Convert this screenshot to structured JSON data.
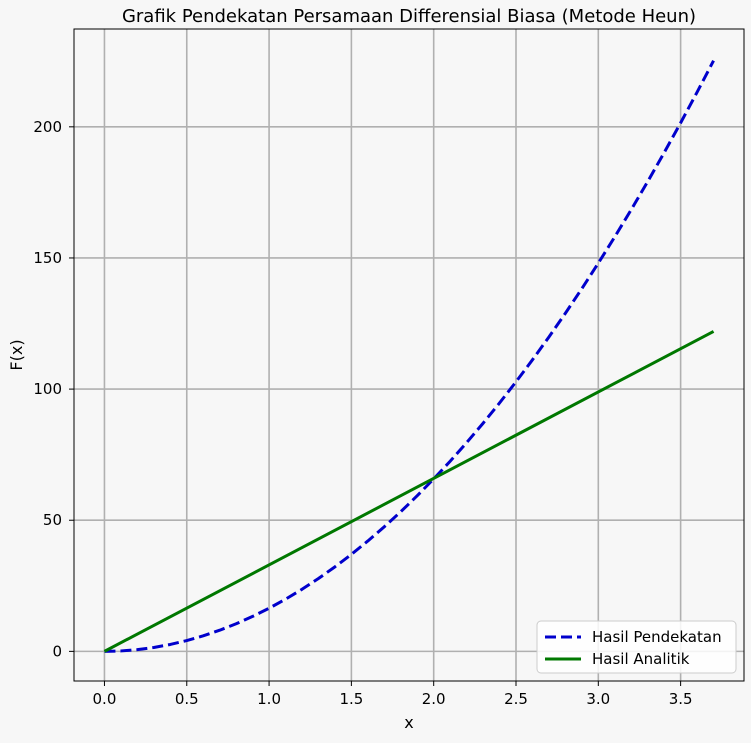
{
  "chart_data": {
    "type": "line",
    "title": "Grafik Pendekatan Persamaan Differensial Biasa (Metode Heun)",
    "xlabel": "x",
    "ylabel": "F(x)",
    "xlim": [
      -0.185,
      3.885
    ],
    "ylim": [
      -11.3,
      237.3
    ],
    "xticks": [
      0.0,
      0.5,
      1.0,
      1.5,
      2.0,
      2.5,
      3.0,
      3.5
    ],
    "xtick_labels": [
      "0.0",
      "0.5",
      "1.0",
      "1.5",
      "2.0",
      "2.5",
      "3.0",
      "3.5"
    ],
    "yticks": [
      0,
      50,
      100,
      150,
      200
    ],
    "ytick_labels": [
      "0",
      "50",
      "100",
      "150",
      "200"
    ],
    "grid": true,
    "legend_position": "lower-right",
    "series": [
      {
        "name": "Hasil Pendekatan",
        "color": "#0000cc",
        "style": "dashed",
        "x": [
          0.0,
          0.1,
          0.2,
          0.3,
          0.4,
          0.5,
          0.6,
          0.7,
          0.8,
          0.9,
          1.0,
          1.1,
          1.2,
          1.3,
          1.4,
          1.5,
          1.6,
          1.7,
          1.8,
          1.9,
          2.0,
          2.1,
          2.2,
          2.3,
          2.4,
          2.5,
          2.6,
          2.7,
          2.8,
          2.9,
          3.0,
          3.1,
          3.2,
          3.3,
          3.4,
          3.5,
          3.6,
          3.7
        ],
        "y": [
          0.0,
          0.16,
          0.66,
          1.48,
          2.63,
          4.11,
          5.92,
          8.06,
          10.52,
          13.32,
          16.44,
          19.89,
          23.67,
          27.78,
          32.22,
          36.99,
          42.09,
          47.51,
          53.26,
          59.35,
          65.76,
          72.5,
          79.58,
          86.98,
          94.71,
          102.77,
          111.16,
          119.88,
          128.93,
          138.31,
          148.02,
          158.06,
          168.43,
          179.12,
          190.15,
          201.51,
          213.2,
          225.21
        ]
      },
      {
        "name": "Hasil Analitik",
        "color": "#007800",
        "style": "solid",
        "x": [
          0.0,
          3.7
        ],
        "y": [
          0.0,
          122.0
        ]
      }
    ]
  }
}
